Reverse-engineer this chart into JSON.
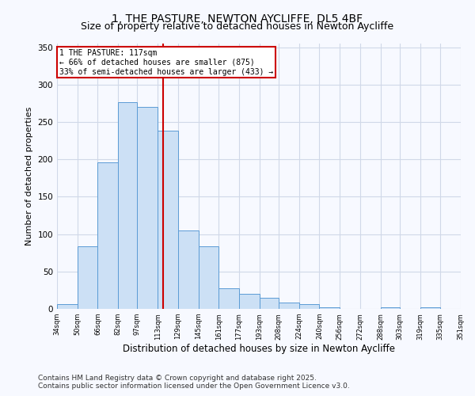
{
  "title": "1, THE PASTURE, NEWTON AYCLIFFE, DL5 4BF",
  "subtitle": "Size of property relative to detached houses in Newton Aycliffe",
  "xlabel": "Distribution of detached houses by size in Newton Aycliffe",
  "ylabel": "Number of detached properties",
  "bar_edges": [
    34,
    50,
    66,
    82,
    97,
    113,
    129,
    145,
    161,
    177,
    193,
    208,
    224,
    240,
    256,
    272,
    288,
    303,
    319,
    335,
    351
  ],
  "bar_heights": [
    6,
    84,
    196,
    277,
    270,
    238,
    105,
    84,
    28,
    20,
    15,
    8,
    6,
    2,
    0,
    0,
    2,
    0,
    2,
    0
  ],
  "bar_face_color": "#cce0f5",
  "bar_edge_color": "#5b9bd5",
  "vline_x": 117,
  "vline_color": "#cc0000",
  "annotation_title": "1 THE PASTURE: 117sqm",
  "annotation_line2": "← 66% of detached houses are smaller (875)",
  "annotation_line3": "33% of semi-detached houses are larger (433) →",
  "annotation_box_color": "#cc0000",
  "annotation_text_color": "black",
  "ylim": [
    0,
    355
  ],
  "yticks": [
    0,
    50,
    100,
    150,
    200,
    250,
    300,
    350
  ],
  "tick_labels": [
    "34sqm",
    "50sqm",
    "66sqm",
    "82sqm",
    "97sqm",
    "113sqm",
    "129sqm",
    "145sqm",
    "161sqm",
    "177sqm",
    "193sqm",
    "208sqm",
    "224sqm",
    "240sqm",
    "256sqm",
    "272sqm",
    "288sqm",
    "303sqm",
    "319sqm",
    "335sqm",
    "351sqm"
  ],
  "footer1": "Contains HM Land Registry data © Crown copyright and database right 2025.",
  "footer2": "Contains public sector information licensed under the Open Government Licence v3.0.",
  "background_color": "#f7f9ff",
  "grid_color": "#d0d8e8",
  "title_fontsize": 10,
  "subtitle_fontsize": 9,
  "xlabel_fontsize": 8.5,
  "ylabel_fontsize": 8,
  "footer_fontsize": 6.5
}
